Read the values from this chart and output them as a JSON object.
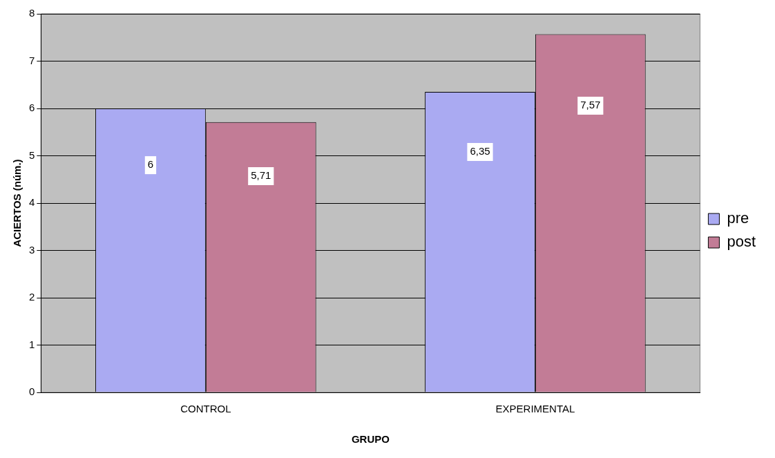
{
  "chart_data": {
    "type": "bar",
    "xlabel": "GRUPO",
    "ylabel": "ACIERTOS (núm.)",
    "categories": [
      "CONTROL",
      "EXPERIMENTAL"
    ],
    "series": [
      {
        "name": "pre",
        "color": "#aaaaf2",
        "values": [
          6,
          6.35
        ],
        "value_labels": [
          "6",
          "6,35"
        ]
      },
      {
        "name": "post",
        "color": "#c27c96",
        "values": [
          5.71,
          7.57
        ],
        "value_labels": [
          "5,71",
          "7,57"
        ]
      }
    ],
    "ylim": [
      0,
      8
    ],
    "yticks": [
      0,
      1,
      2,
      3,
      4,
      5,
      6,
      7,
      8
    ],
    "grid": "y",
    "legend": "right"
  }
}
